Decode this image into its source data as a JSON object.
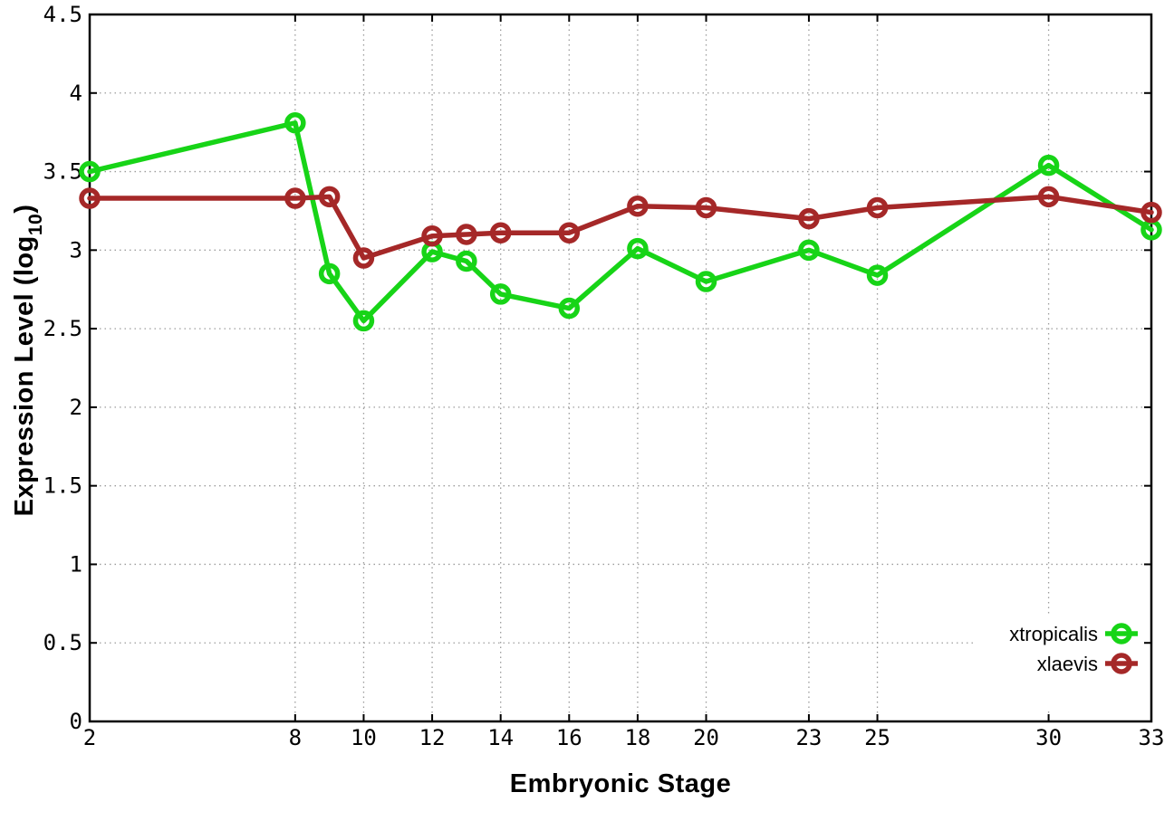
{
  "chart_data": {
    "type": "line",
    "title": "",
    "xlabel": "Embryonic Stage",
    "ylabel": "Expression Level (log10)",
    "ylabel_parts": {
      "pre": "Expression Level (log",
      "sub": "10",
      "post": ")"
    },
    "xlim": [
      2,
      33
    ],
    "ylim": [
      0,
      4.5
    ],
    "x_ticks": [
      2,
      8,
      10,
      12,
      14,
      16,
      18,
      20,
      23,
      25,
      30,
      33
    ],
    "y_ticks": [
      0,
      0.5,
      1,
      1.5,
      2,
      2.5,
      3,
      3.5,
      4,
      4.5
    ],
    "grid": true,
    "legend_position": "bottom-right",
    "background_color": "#ffffff",
    "axis_color": "#000000",
    "grid_color": "#9c9c9c",
    "series": [
      {
        "name": "xtropicalis",
        "color": "#17d417",
        "x": [
          2,
          8,
          9,
          10,
          12,
          13,
          14,
          16,
          18,
          20,
          23,
          25,
          30,
          33
        ],
        "y": [
          3.5,
          3.81,
          2.85,
          2.55,
          2.99,
          2.93,
          2.72,
          2.63,
          3.01,
          2.8,
          3.0,
          2.84,
          3.54,
          3.13
        ]
      },
      {
        "name": "xlaevis",
        "color": "#a52828",
        "x": [
          2,
          8,
          9,
          10,
          12,
          13,
          14,
          16,
          18,
          20,
          23,
          25,
          30,
          33
        ],
        "y": [
          3.33,
          3.33,
          3.34,
          2.95,
          3.09,
          3.1,
          3.11,
          3.11,
          3.28,
          3.27,
          3.2,
          3.27,
          3.34,
          3.24
        ]
      }
    ]
  }
}
